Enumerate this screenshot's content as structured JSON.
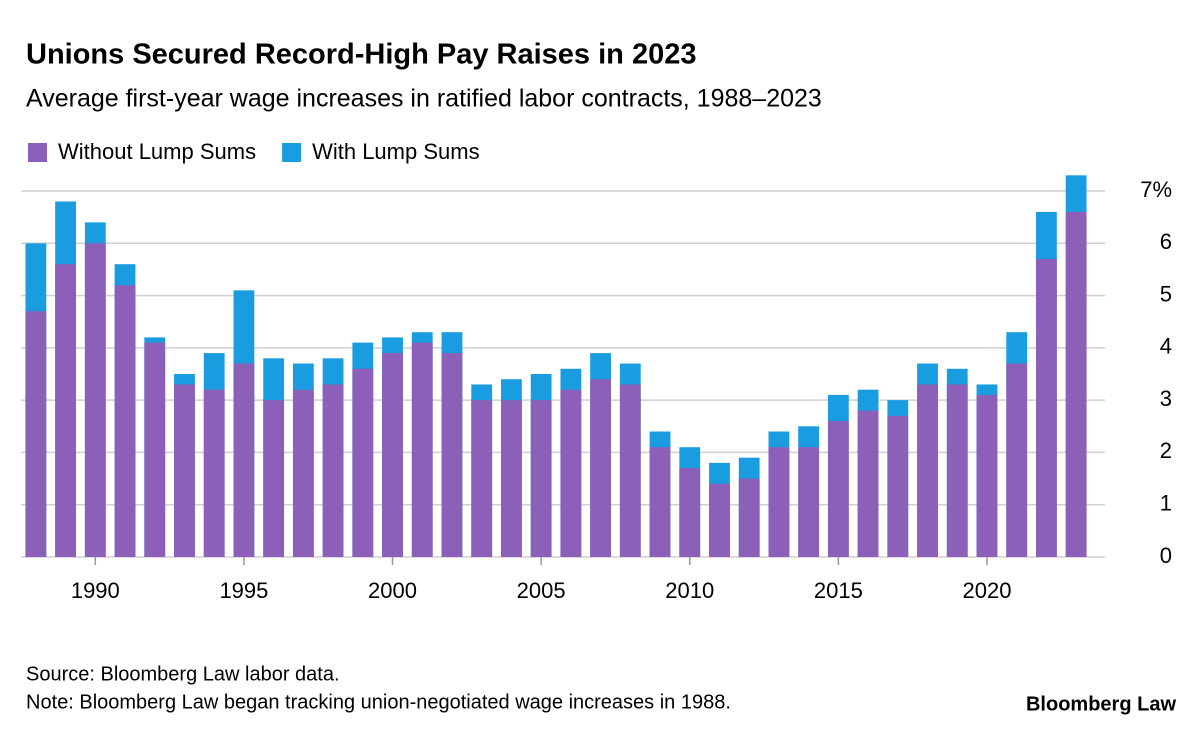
{
  "chart_data": {
    "type": "bar",
    "title": "Unions Secured Record-High Pay Raises in 2023",
    "subtitle": "Average first-year wage increases in ratified labor contracts, 1988–2023",
    "source": "Source: Bloomberg Law labor data.",
    "note": "Note: Bloomberg Law began tracking union-negotiated wage increases in 1988.",
    "brand": "Bloomberg Law",
    "x": [
      1988,
      1989,
      1990,
      1991,
      1992,
      1993,
      1994,
      1995,
      1996,
      1997,
      1998,
      1999,
      2000,
      2001,
      2002,
      2003,
      2004,
      2005,
      2006,
      2007,
      2008,
      2009,
      2010,
      2011,
      2012,
      2013,
      2014,
      2015,
      2016,
      2017,
      2018,
      2019,
      2020,
      2021,
      2022,
      2023
    ],
    "series": [
      {
        "name": "Without Lump Sums",
        "color": "#8c5fb8",
        "values": [
          4.7,
          5.6,
          6.0,
          5.2,
          4.1,
          3.3,
          3.2,
          3.7,
          3.0,
          3.2,
          3.3,
          3.6,
          3.9,
          4.1,
          3.9,
          3.0,
          3.0,
          3.0,
          3.2,
          3.4,
          3.3,
          2.1,
          1.7,
          1.4,
          1.5,
          2.1,
          2.1,
          2.6,
          2.8,
          2.7,
          3.3,
          3.3,
          3.1,
          3.7,
          5.7,
          6.6
        ]
      },
      {
        "name": "With Lump Sums",
        "color": "#1a9de0",
        "values": [
          6.0,
          6.8,
          6.4,
          5.6,
          4.2,
          3.5,
          3.9,
          5.1,
          3.8,
          3.7,
          3.8,
          4.1,
          4.2,
          4.3,
          4.3,
          3.3,
          3.4,
          3.5,
          3.6,
          3.9,
          3.7,
          2.4,
          2.1,
          1.8,
          1.9,
          2.4,
          2.5,
          3.1,
          3.2,
          3.0,
          3.7,
          3.6,
          3.3,
          4.3,
          6.6,
          7.3
        ]
      }
    ],
    "xlim": [
      1987.5,
      2023.5
    ],
    "xticks": [
      1990,
      1995,
      2000,
      2005,
      2010,
      2015,
      2020
    ],
    "ylim": [
      0,
      7
    ],
    "yticks": [
      0,
      1,
      2,
      3,
      4,
      5,
      6,
      {
        "value": 7,
        "label": "7%"
      }
    ],
    "grid": true,
    "legend": "top-left"
  }
}
